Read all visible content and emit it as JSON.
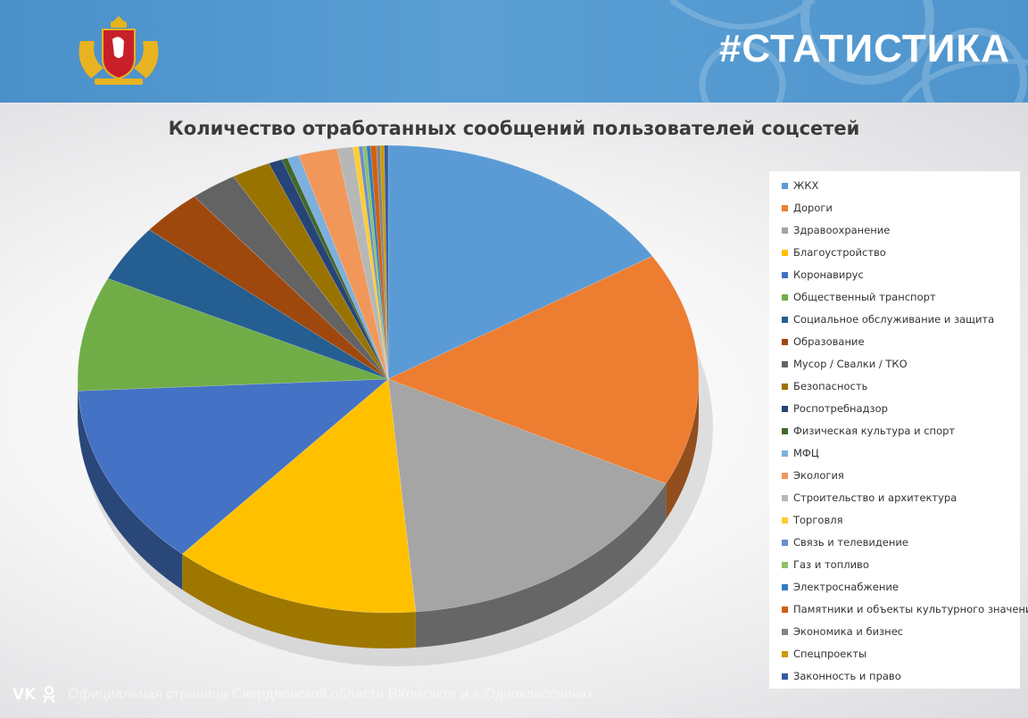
{
  "header": {
    "title": "#СТАТИСТИКА",
    "emblem_icon": "coat-of-arms-icon"
  },
  "footer": {
    "text": "Официальная страница Свердловской области ВКонтакте и в Одноклассниках",
    "icons": [
      "vk-icon",
      "odnoklassniki-icon"
    ]
  },
  "chart_data": {
    "type": "pie",
    "title": "Количество отработанных сообщений пользователей соцсетей",
    "legend_position": "right",
    "categories": [
      "ЖКХ",
      "Дороги",
      "Здравоохранение",
      "Благоустройство",
      "Коронавирус",
      "Общественный транспорт",
      "Социальное обслуживание и защита",
      "Образование",
      "Мусор / Свалки / ТКО",
      "Безопасность",
      "Роспотребнадзор",
      "Физическая культура и спорт",
      "МФЦ",
      "Экология",
      "Строительство и архитектура",
      "Торговля",
      "Связь и телевидение",
      "Газ и топливо",
      "Электроснабжение",
      "Памятники и объекты культурного значения",
      "Экономика и бизнес",
      "Спецпроекты",
      "Законность и право"
    ],
    "values": [
      16.0,
      16.0,
      16.0,
      12.8,
      12.5,
      7.8,
      3.9,
      3.2,
      2.4,
      2.0,
      0.7,
      0.3,
      0.6,
      2.0,
      0.8,
      0.3,
      0.2,
      0.2,
      0.2,
      0.3,
      0.2,
      0.2,
      0.2
    ],
    "colors": [
      "#5b9bd5",
      "#ed7d31",
      "#a5a5a5",
      "#ffc000",
      "#4472c4",
      "#70ad47",
      "#255e91",
      "#9e480e",
      "#636363",
      "#997300",
      "#264478",
      "#43682b",
      "#7cafdd",
      "#f1975a",
      "#b7b7b7",
      "#ffcd33",
      "#698ed0",
      "#8cc168",
      "#327dc2",
      "#d26012",
      "#848484",
      "#cc9a00",
      "#335aa1"
    ]
  }
}
